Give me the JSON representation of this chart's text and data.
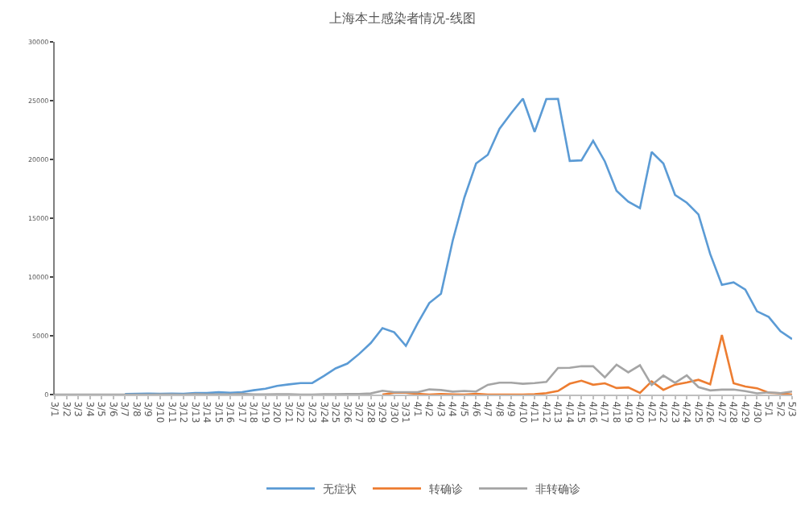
{
  "chart_data": {
    "type": "line",
    "title": "上海本土感染者情况-线图",
    "categories": [
      "3/1",
      "3/2",
      "3/3",
      "3/4",
      "3/5",
      "3/6",
      "3/7",
      "3/8",
      "3/9",
      "3/10",
      "3/11",
      "3/12",
      "3/13",
      "3/14",
      "3/15",
      "3/16",
      "3/17",
      "3/18",
      "3/19",
      "3/20",
      "3/21",
      "3/22",
      "3/23",
      "3/24",
      "3/25",
      "3/26",
      "3/27",
      "3/28",
      "3/29",
      "3/30",
      "3/31",
      "4/1",
      "4/2",
      "4/3",
      "4/4",
      "4/5",
      "4/6",
      "4/7",
      "4/8",
      "4/9",
      "4/10",
      "4/11",
      "4/12",
      "4/13",
      "4/14",
      "4/15",
      "4/16",
      "4/17",
      "4/18",
      "4/19",
      "4/20",
      "4/21",
      "4/22",
      "4/23",
      "4/24",
      "4/25",
      "4/26",
      "4/27",
      "4/28",
      "4/29",
      "4/30",
      "5/1",
      "5/2",
      "5/3"
    ],
    "series": [
      {
        "name": "无症状",
        "color": "#5b9bd5",
        "values": [
          null,
          null,
          null,
          null,
          null,
          null,
          51,
          62,
          76,
          64,
          78,
          64,
          128,
          130,
          197,
          150,
          203,
          366,
          492,
          734,
          865,
          977,
          979,
          1580,
          2231,
          2631,
          3450,
          4381,
          5656,
          5298,
          4144,
          6051,
          7788,
          8581,
          13086,
          16766,
          19660,
          20398,
          22609,
          23937,
          25173,
          22348,
          25141,
          25146,
          19872,
          19923,
          21582,
          19831,
          17332,
          16407,
          15861,
          20634,
          19657,
          16983,
          16319,
          15319,
          11956,
          9330,
          9545,
          8932,
          7084,
          6606,
          5395,
          4722
        ]
      },
      {
        "name": "转确诊",
        "color": "#ed7d31",
        "values": [
          null,
          null,
          null,
          null,
          null,
          null,
          null,
          null,
          null,
          null,
          null,
          null,
          null,
          null,
          null,
          null,
          null,
          null,
          null,
          null,
          null,
          null,
          null,
          null,
          null,
          null,
          null,
          null,
          0,
          150,
          150,
          60,
          0,
          40,
          20,
          0,
          60,
          0,
          0,
          0,
          0,
          23,
          119,
          307,
          922,
          1177,
          833,
          954,
          555,
          608,
          141,
          1120,
          401,
          846,
          1026,
          1253,
          875,
          5062,
          960,
          683,
          538,
          150,
          110,
          0
        ]
      },
      {
        "name": "非转确诊",
        "color": "#a5a5a5",
        "values": [
          1,
          0,
          3,
          2,
          0,
          3,
          3,
          3,
          4,
          11,
          5,
          1,
          41,
          9,
          5,
          8,
          57,
          8,
          17,
          24,
          31,
          4,
          4,
          29,
          38,
          45,
          50,
          96,
          326,
          205,
          208,
          200,
          438,
          385,
          248,
          311,
          262,
          824,
          1015,
          1006,
          914,
          971,
          1070,
          2266,
          2278,
          2413,
          2405,
          1463,
          2539,
          1886,
          2493,
          811,
          1616,
          1000,
          1626,
          635,
          353,
          417,
          425,
          289,
          105,
          189,
          124,
          260
        ]
      }
    ],
    "ylim": [
      0,
      30000
    ],
    "yticks": [
      0,
      5000,
      10000,
      15000,
      20000,
      25000,
      30000
    ],
    "grid": false,
    "legend": "bottom",
    "marker": "none",
    "line_style": "solid"
  }
}
